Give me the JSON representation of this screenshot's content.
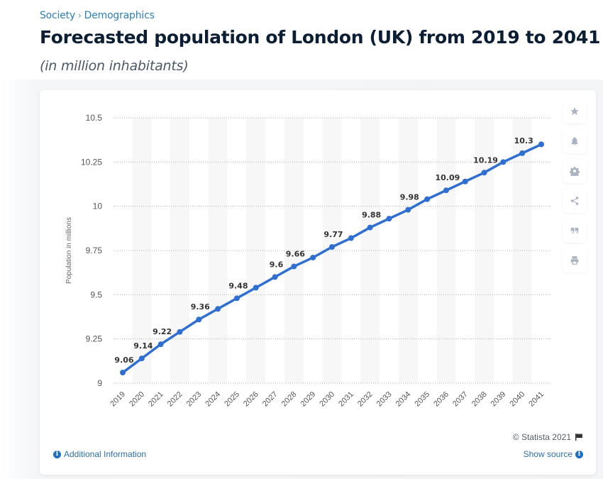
{
  "breadcrumb": {
    "items": [
      "Society",
      "Demographics"
    ],
    "separator": "›"
  },
  "header": {
    "title": "Forecasted population of London (UK) from 2019 to 2041",
    "subtitle": "(in million inhabitants)"
  },
  "toolbar": {
    "items": [
      {
        "name": "favorite",
        "icon": "star-icon"
      },
      {
        "name": "notification",
        "icon": "bell-icon"
      },
      {
        "name": "settings",
        "icon": "gear-icon"
      },
      {
        "name": "share",
        "icon": "share-icon"
      },
      {
        "name": "cite",
        "icon": "quote-icon"
      },
      {
        "name": "print",
        "icon": "printer-icon"
      }
    ]
  },
  "footer": {
    "copyright": "© Statista 2021",
    "additional_info": "Additional Information",
    "show_source": "Show source"
  },
  "colors": {
    "line": "#2f6fd1",
    "accent": "#2c7fb8",
    "title": "#0b1e33"
  },
  "chart_data": {
    "type": "line",
    "title": "Forecasted population of London (UK) from 2019 to 2041",
    "subtitle": "(in million inhabitants)",
    "xlabel": "",
    "ylabel": "Population in millions",
    "ylim": [
      9,
      10.5
    ],
    "yticks": [
      9,
      9.25,
      9.5,
      9.75,
      10,
      10.25,
      10.5
    ],
    "ytick_labels": [
      "9",
      "9.25",
      "9.5",
      "9.75",
      "10",
      "10.25",
      "10.5"
    ],
    "grid": true,
    "legend": "none",
    "x": [
      "2019",
      "2020",
      "2021",
      "2022",
      "2023",
      "2024",
      "2025",
      "2026",
      "2027",
      "2028",
      "2029",
      "2030",
      "2031",
      "2032",
      "2033",
      "2034",
      "2035",
      "2036",
      "2037",
      "2038",
      "2039",
      "2040",
      "2041"
    ],
    "series": [
      {
        "name": "Population",
        "values": [
          9.06,
          9.14,
          9.22,
          9.29,
          9.36,
          9.42,
          9.48,
          9.54,
          9.6,
          9.66,
          9.71,
          9.77,
          9.82,
          9.88,
          9.93,
          9.98,
          10.04,
          10.09,
          10.14,
          10.19,
          10.25,
          10.3,
          10.35
        ],
        "data_labels": [
          "9.06",
          "9.14",
          "9.22",
          "",
          "9.36",
          "",
          "9.48",
          "",
          "9.6",
          "9.66",
          "",
          "9.77",
          "",
          "9.88",
          "",
          "9.98",
          "",
          "10.09",
          "",
          "10.19",
          "",
          "10.3",
          ""
        ]
      }
    ]
  }
}
